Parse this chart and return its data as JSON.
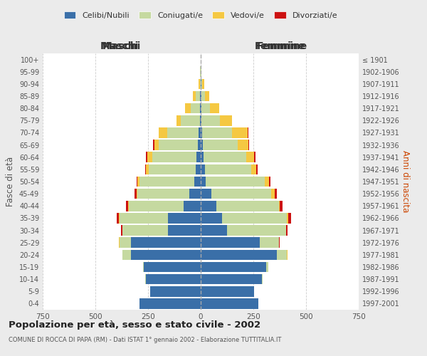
{
  "age_groups": [
    "0-4",
    "5-9",
    "10-14",
    "15-19",
    "20-24",
    "25-29",
    "30-34",
    "35-39",
    "40-44",
    "45-49",
    "50-54",
    "55-59",
    "60-64",
    "65-69",
    "70-74",
    "75-79",
    "80-84",
    "85-89",
    "90-94",
    "95-99",
    "100+"
  ],
  "birth_years": [
    "1997-2001",
    "1992-1996",
    "1987-1991",
    "1982-1986",
    "1977-1981",
    "1972-1976",
    "1967-1971",
    "1962-1966",
    "1957-1961",
    "1952-1956",
    "1947-1951",
    "1942-1946",
    "1937-1941",
    "1932-1936",
    "1927-1931",
    "1922-1926",
    "1917-1921",
    "1912-1916",
    "1907-1911",
    "1902-1906",
    "≤ 1901"
  ],
  "males": {
    "celibi": [
      290,
      240,
      260,
      270,
      330,
      330,
      155,
      155,
      80,
      55,
      30,
      25,
      20,
      15,
      10,
      5,
      3,
      2,
      0,
      0,
      0
    ],
    "coniugati": [
      0,
      0,
      5,
      5,
      40,
      55,
      215,
      230,
      260,
      245,
      260,
      220,
      210,
      185,
      150,
      90,
      45,
      20,
      5,
      2,
      0
    ],
    "vedovi": [
      0,
      0,
      0,
      0,
      0,
      2,
      2,
      2,
      5,
      5,
      10,
      15,
      25,
      20,
      40,
      20,
      25,
      15,
      5,
      0,
      0
    ],
    "divorziati": [
      0,
      0,
      0,
      0,
      0,
      2,
      5,
      10,
      10,
      10,
      5,
      5,
      5,
      5,
      0,
      0,
      0,
      0,
      0,
      0,
      0
    ]
  },
  "females": {
    "nubili": [
      275,
      255,
      290,
      310,
      360,
      280,
      125,
      100,
      75,
      50,
      25,
      20,
      15,
      10,
      8,
      5,
      4,
      2,
      2,
      0,
      0
    ],
    "coniugate": [
      0,
      0,
      5,
      10,
      50,
      90,
      280,
      310,
      295,
      285,
      280,
      220,
      200,
      165,
      140,
      85,
      40,
      18,
      5,
      2,
      0
    ],
    "vedove": [
      0,
      0,
      0,
      0,
      2,
      2,
      2,
      5,
      5,
      15,
      20,
      25,
      40,
      50,
      75,
      60,
      45,
      20,
      10,
      2,
      0
    ],
    "divorziate": [
      0,
      0,
      0,
      0,
      0,
      2,
      5,
      15,
      15,
      10,
      5,
      5,
      5,
      5,
      5,
      0,
      0,
      0,
      0,
      0,
      0
    ]
  },
  "color_celibi": "#3a6fa8",
  "color_coniugati": "#c5d9a0",
  "color_vedovi": "#f5c842",
  "color_divorziati": "#cc1111",
  "title": "Popolazione per età, sesso e stato civile - 2002",
  "subtitle": "COMUNE DI ROCCA DI PAPA (RM) - Dati ISTAT 1° gennaio 2002 - Elaborazione TUTTITALIA.IT",
  "xlabel_left": "Maschi",
  "xlabel_right": "Femmine",
  "ylabel_left": "Fasce di età",
  "ylabel_right": "Anni di nascita",
  "xlim": 750,
  "legend_labels": [
    "Celibi/Nubili",
    "Coniugati/e",
    "Vedovi/e",
    "Divorziati/e"
  ],
  "bg_color": "#ebebeb",
  "plot_bg": "#ffffff"
}
